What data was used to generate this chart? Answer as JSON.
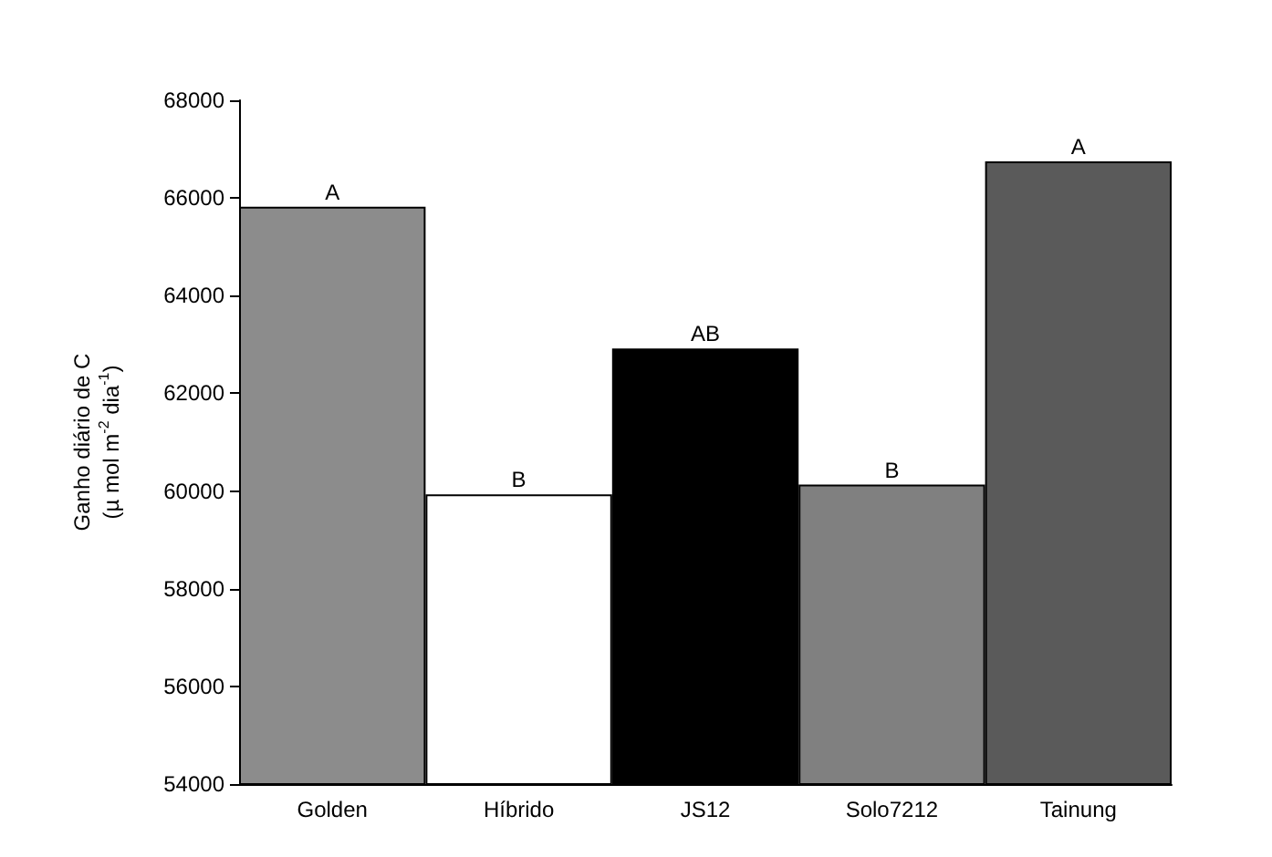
{
  "chart_data": {
    "type": "bar",
    "ylabel": "Ganho diário de C\n(µ mol m$^{-2}$ dia$^{-1}$)",
    "categories": [
      "Golden",
      "Híbrido",
      "JS12",
      "Solo7212",
      "Tainung"
    ],
    "values": [
      65820,
      59930,
      62920,
      60130,
      66750
    ],
    "colors": [
      "#8c8c8c",
      "#ffffff",
      "#000000",
      "#808080",
      "#5a5a5a"
    ],
    "value_labels": [
      "A",
      "B",
      "AB",
      "B",
      "A"
    ],
    "ylim": [
      54000,
      68000
    ],
    "yticks": [
      54000,
      56000,
      58000,
      60000,
      62000,
      64000,
      66000,
      68000
    ],
    "grid": false
  }
}
